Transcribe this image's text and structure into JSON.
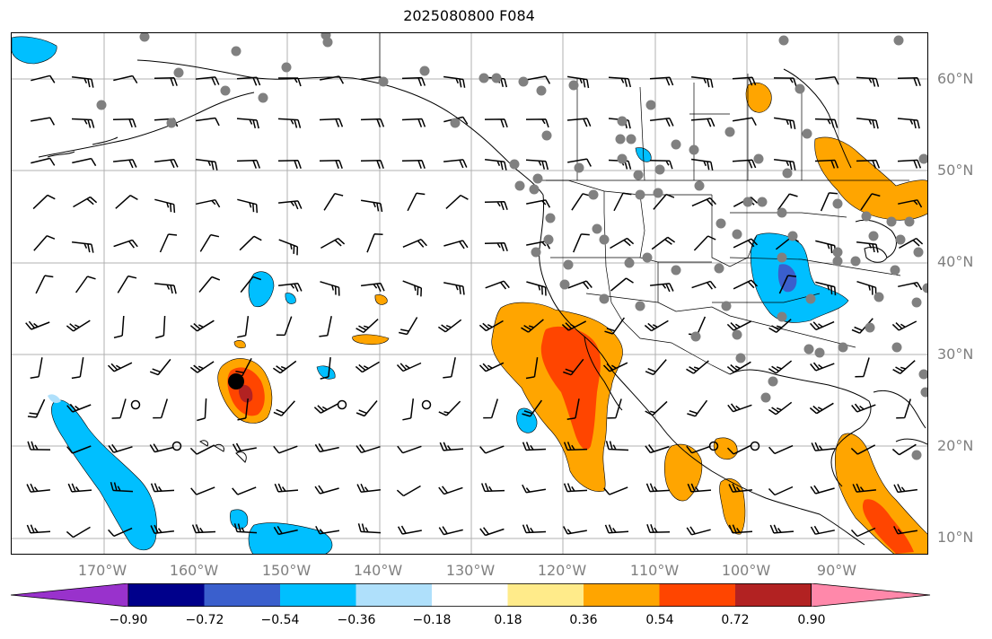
{
  "title": "2025080800 F084",
  "lat_labels": [
    {
      "text": "60°N",
      "lat": 60
    },
    {
      "text": "50°N",
      "lat": 50
    },
    {
      "text": "40°N",
      "lat": 40
    },
    {
      "text": "30°N",
      "lat": 30
    },
    {
      "text": "20°N",
      "lat": 20
    },
    {
      "text": "10°N",
      "lat": 10
    }
  ],
  "lon_labels": [
    {
      "text": "170°W",
      "lon": -170
    },
    {
      "text": "160°W",
      "lon": -160
    },
    {
      "text": "150°W",
      "lon": -150
    },
    {
      "text": "140°W",
      "lon": -140
    },
    {
      "text": "130°W",
      "lon": -130
    },
    {
      "text": "120°W",
      "lon": -120
    },
    {
      "text": "110°W",
      "lon": -110
    },
    {
      "text": "100°W",
      "lon": -100
    },
    {
      "text": "90°W",
      "lon": -90
    }
  ],
  "colorbar": {
    "tick_labels": [
      "−0.90",
      "−0.72",
      "−0.54",
      "−0.36",
      "−0.18",
      "0.18",
      "0.36",
      "0.54",
      "0.72",
      "0.90"
    ],
    "colors": [
      "#9932cc",
      "#00008b",
      "#3a5fcd",
      "#00bfff",
      "#afe0fb",
      "#ffffff",
      "#ffeb8a",
      "#ffa500",
      "#ff4500",
      "#b22222",
      "#ff88aa"
    ]
  },
  "colors": {
    "grid": "#b0b0b0",
    "coast": "#000000",
    "station": "#808080",
    "marker": "#000000"
  },
  "fields": {
    "positive_regions": [
      {
        "name": "baja-california-plume",
        "level": 0.72
      },
      {
        "name": "hawaii-cell",
        "level": 0.72
      },
      {
        "name": "central-america",
        "level": 0.54
      },
      {
        "name": "great-lakes",
        "level": 0.54
      },
      {
        "name": "mexico-pacific",
        "level": 0.54
      }
    ],
    "negative_regions": [
      {
        "name": "midwest-us",
        "level": -0.72
      },
      {
        "name": "tropical-pacific-band",
        "level": -0.54
      },
      {
        "name": "south-pacific",
        "level": -0.54
      }
    ]
  }
}
